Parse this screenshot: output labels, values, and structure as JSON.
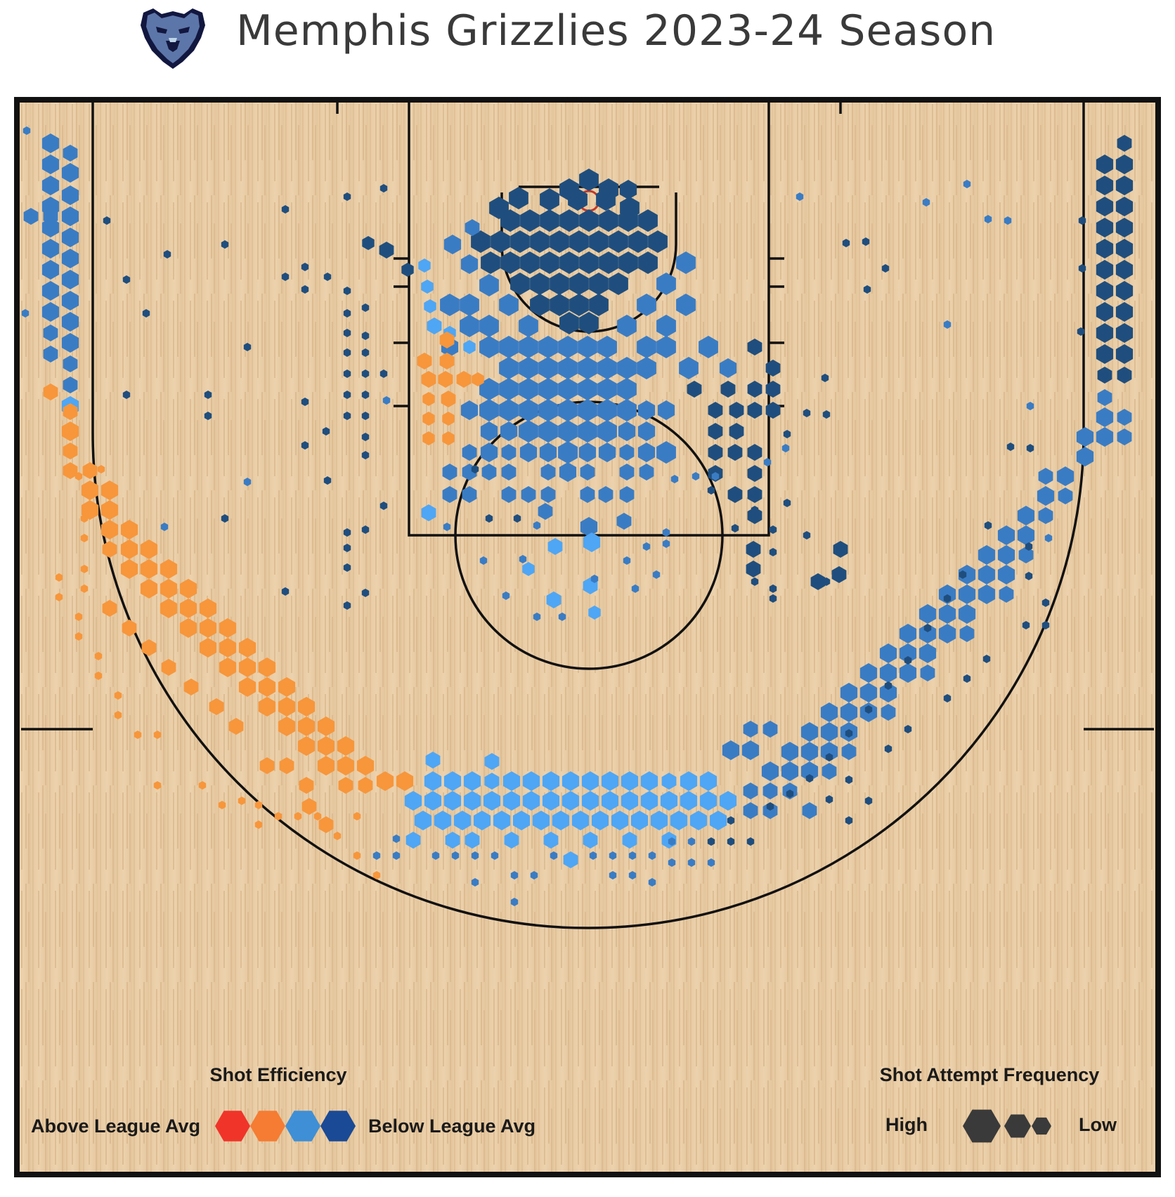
{
  "title": "Memphis Grizzlies 2023-24 Season",
  "logo": {
    "icon": "grizzly-bear-logo",
    "colors": [
      "#5d76a9",
      "#12173f",
      "#bed4e9"
    ]
  },
  "legend": {
    "efficiency_title": "Shot Efficiency",
    "above_label": "Above League Avg",
    "below_label": "Below League Avg",
    "efficiency_colors": [
      "#f0342a",
      "#f57c32",
      "#3f8fd6",
      "#1a4a96"
    ],
    "frequency_title": "Shot Attempt Frequency",
    "high_label": "High",
    "low_label": "Low",
    "frequency_color": "#3a3a3a"
  },
  "chart_data": {
    "type": "heatmap",
    "subtype": "hexbin shot chart",
    "court": "half court, basket at top",
    "bins": [
      {
        "zone": "Restricted area / rim",
        "efficiency": "below average (dark blue)",
        "frequency": "high"
      },
      {
        "zone": "Paint (non-restricted area)",
        "efficiency": "below average (blue)",
        "frequency": "high"
      },
      {
        "zone": "Left short midrange / left block",
        "efficiency": "above average (orange)",
        "frequency": "medium"
      },
      {
        "zone": "Right short midrange / right block",
        "efficiency": "below average (dark blue)",
        "frequency": "medium"
      },
      {
        "zone": "Left corner 3",
        "efficiency": "below average (blue)",
        "frequency": "high"
      },
      {
        "zone": "Right corner 3",
        "efficiency": "below average (dark blue)",
        "frequency": "high"
      },
      {
        "zone": "Left wing 3",
        "efficiency": "above average (orange)",
        "frequency": "high"
      },
      {
        "zone": "Top of key 3",
        "efficiency": "below average (light blue)",
        "frequency": "high"
      },
      {
        "zone": "Right wing 3",
        "efficiency": "below average (blue)",
        "frequency": "high"
      },
      {
        "zone": "Midrange elbows / free throw line",
        "efficiency": "below average (light blue)",
        "frequency": "low"
      },
      {
        "zone": "Deep 3 / beyond arc",
        "efficiency": "below average (light blue)",
        "frequency": "low"
      }
    ],
    "color_scale": [
      "#f0342a",
      "#f7963b",
      "#4ea6f5",
      "#3a7cc4",
      "#1f4e7e"
    ],
    "color_scale_labels": [
      "Above League Avg",
      "Below League Avg"
    ],
    "size_scale_labels": [
      "High",
      "Low"
    ]
  }
}
